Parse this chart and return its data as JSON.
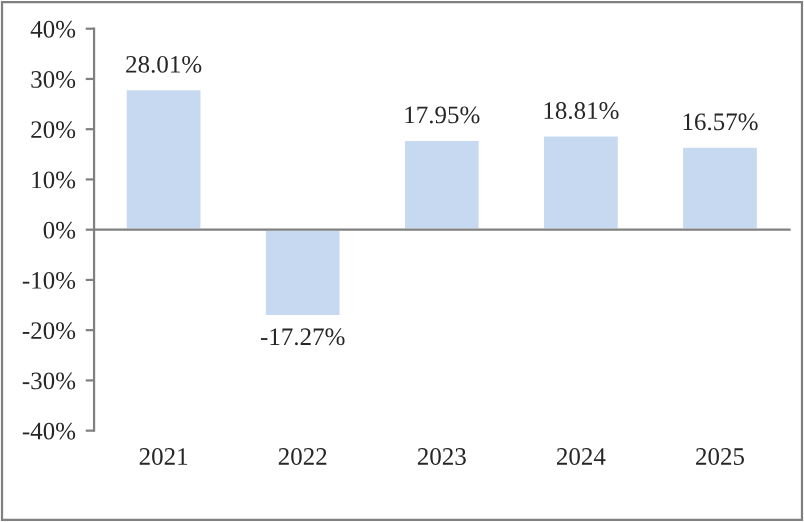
{
  "chart_data": {
    "type": "bar",
    "categories": [
      "2021",
      "2022",
      "2023",
      "2024",
      "2025"
    ],
    "values": [
      28.01,
      -17.27,
      17.95,
      18.81,
      16.57
    ],
    "value_labels": [
      "28.01%",
      "-17.27%",
      "17.95%",
      "18.81%",
      "16.57%"
    ],
    "color": "#c6d9f1",
    "ylim": [
      -40,
      40
    ],
    "yticks": [
      {
        "value": -40,
        "label": "-40%"
      },
      {
        "value": -30,
        "label": "-30%"
      },
      {
        "value": -20,
        "label": "-20%"
      },
      {
        "value": -10,
        "label": "-10%"
      },
      {
        "value": 0,
        "label": "0%"
      },
      {
        "value": 10,
        "label": "10%"
      },
      {
        "value": 20,
        "label": "20%"
      },
      {
        "value": 30,
        "label": "30%"
      },
      {
        "value": 40,
        "label": "40%"
      }
    ],
    "legend": false
  }
}
